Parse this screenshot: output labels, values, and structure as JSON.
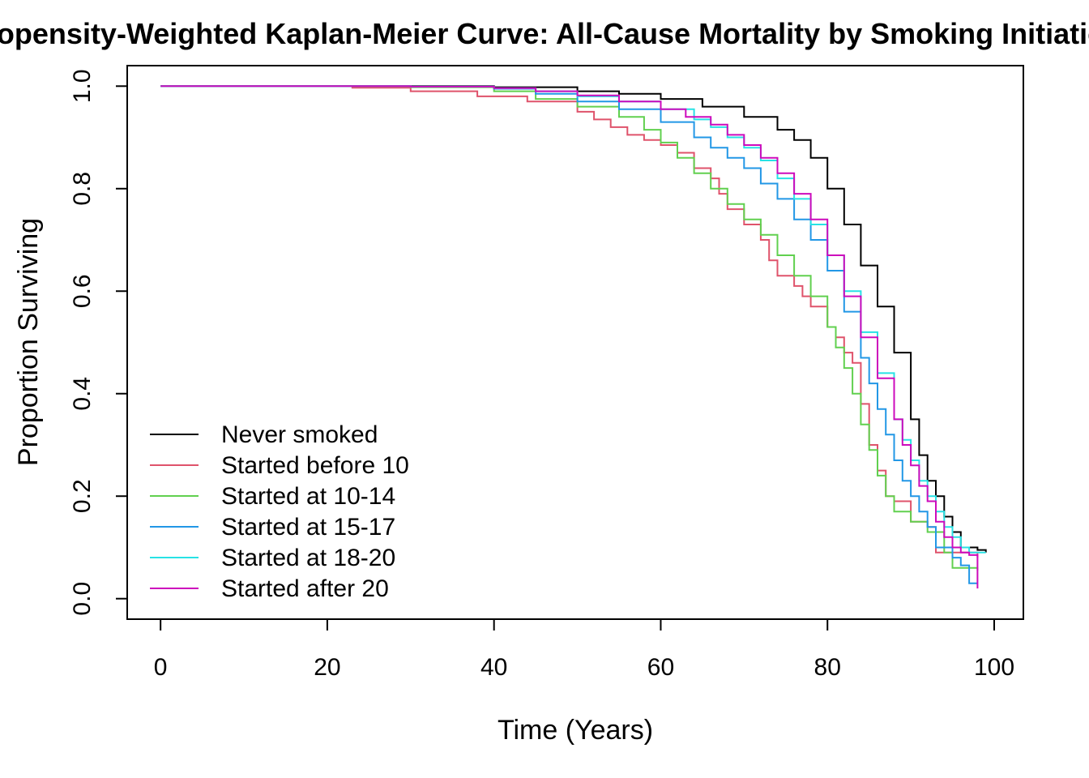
{
  "chart_data": {
    "type": "line",
    "title": "Propensity-Weighted Kaplan-Meier Curve: All-Cause Mortality by Smoking Initiation",
    "xlabel": "Time (Years)",
    "ylabel": "Proportion Surviving",
    "xlim": [
      -4,
      103.5
    ],
    "ylim": [
      -0.04,
      1.04
    ],
    "xticks": [
      0,
      20,
      40,
      60,
      80,
      100
    ],
    "xtick_labels": [
      "0",
      "20",
      "40",
      "60",
      "80",
      "100"
    ],
    "yticks": [
      0.0,
      0.2,
      0.4,
      0.6,
      0.8,
      1.0
    ],
    "ytick_labels": [
      "0.0",
      "0.2",
      "0.4",
      "0.6",
      "0.8",
      "1.0"
    ],
    "grid": false,
    "legend_position": "bottom-left",
    "step": true,
    "series": [
      {
        "name": "Never smoked",
        "color": "#000000",
        "points": [
          [
            0,
            1.0
          ],
          [
            40,
            0.998
          ],
          [
            50,
            0.99
          ],
          [
            55,
            0.985
          ],
          [
            60,
            0.975
          ],
          [
            65,
            0.96
          ],
          [
            70,
            0.94
          ],
          [
            74,
            0.915
          ],
          [
            76,
            0.895
          ],
          [
            78,
            0.86
          ],
          [
            80,
            0.8
          ],
          [
            82,
            0.73
          ],
          [
            84,
            0.65
          ],
          [
            86,
            0.57
          ],
          [
            88,
            0.48
          ],
          [
            90,
            0.35
          ],
          [
            91,
            0.28
          ],
          [
            92,
            0.23
          ],
          [
            93,
            0.2
          ],
          [
            94,
            0.16
          ],
          [
            95,
            0.13
          ],
          [
            96,
            0.1
          ],
          [
            98,
            0.095
          ],
          [
            99,
            0.09
          ]
        ]
      },
      {
        "name": "Started before 10",
        "color": "#DF536B",
        "points": [
          [
            0,
            1.0
          ],
          [
            23,
            0.997
          ],
          [
            30,
            0.99
          ],
          [
            38,
            0.98
          ],
          [
            44,
            0.97
          ],
          [
            50,
            0.95
          ],
          [
            52,
            0.935
          ],
          [
            54,
            0.92
          ],
          [
            56,
            0.905
          ],
          [
            58,
            0.895
          ],
          [
            60,
            0.885
          ],
          [
            62,
            0.87
          ],
          [
            64,
            0.84
          ],
          [
            66,
            0.82
          ],
          [
            67,
            0.79
          ],
          [
            68,
            0.76
          ],
          [
            70,
            0.73
          ],
          [
            72,
            0.7
          ],
          [
            73,
            0.66
          ],
          [
            74,
            0.63
          ],
          [
            76,
            0.61
          ],
          [
            77,
            0.59
          ],
          [
            78,
            0.57
          ],
          [
            80,
            0.53
          ],
          [
            81,
            0.51
          ],
          [
            82,
            0.48
          ],
          [
            83,
            0.46
          ],
          [
            84,
            0.38
          ],
          [
            85,
            0.3
          ],
          [
            86,
            0.25
          ],
          [
            87,
            0.2
          ],
          [
            88,
            0.19
          ],
          [
            90,
            0.15
          ],
          [
            92,
            0.14
          ],
          [
            93,
            0.09
          ],
          [
            96,
            0.09
          ],
          [
            98,
            0.08
          ]
        ]
      },
      {
        "name": "Started at 10-14",
        "color": "#61D04F",
        "points": [
          [
            0,
            1.0
          ],
          [
            30,
            0.998
          ],
          [
            40,
            0.99
          ],
          [
            45,
            0.975
          ],
          [
            50,
            0.96
          ],
          [
            55,
            0.94
          ],
          [
            58,
            0.915
          ],
          [
            60,
            0.89
          ],
          [
            62,
            0.86
          ],
          [
            64,
            0.83
          ],
          [
            66,
            0.8
          ],
          [
            68,
            0.77
          ],
          [
            70,
            0.74
          ],
          [
            72,
            0.71
          ],
          [
            74,
            0.67
          ],
          [
            76,
            0.63
          ],
          [
            78,
            0.59
          ],
          [
            80,
            0.53
          ],
          [
            81,
            0.49
          ],
          [
            82,
            0.45
          ],
          [
            83,
            0.4
          ],
          [
            84,
            0.34
          ],
          [
            85,
            0.29
          ],
          [
            86,
            0.24
          ],
          [
            87,
            0.2
          ],
          [
            88,
            0.17
          ],
          [
            90,
            0.15
          ],
          [
            92,
            0.13
          ],
          [
            94,
            0.09
          ],
          [
            95,
            0.06
          ],
          [
            98,
            0.055
          ]
        ]
      },
      {
        "name": "Started at 15-17",
        "color": "#2297E6",
        "points": [
          [
            0,
            1.0
          ],
          [
            30,
            0.999
          ],
          [
            40,
            0.995
          ],
          [
            45,
            0.985
          ],
          [
            50,
            0.97
          ],
          [
            55,
            0.955
          ],
          [
            60,
            0.93
          ],
          [
            64,
            0.9
          ],
          [
            66,
            0.88
          ],
          [
            68,
            0.86
          ],
          [
            70,
            0.84
          ],
          [
            72,
            0.81
          ],
          [
            74,
            0.78
          ],
          [
            76,
            0.74
          ],
          [
            78,
            0.7
          ],
          [
            80,
            0.64
          ],
          [
            82,
            0.56
          ],
          [
            84,
            0.47
          ],
          [
            85,
            0.42
          ],
          [
            86,
            0.37
          ],
          [
            87,
            0.32
          ],
          [
            88,
            0.27
          ],
          [
            89,
            0.23
          ],
          [
            90,
            0.2
          ],
          [
            91,
            0.17
          ],
          [
            92,
            0.14
          ],
          [
            93,
            0.1
          ],
          [
            95,
            0.08
          ],
          [
            96,
            0.065
          ],
          [
            97,
            0.03
          ],
          [
            98,
            0.03
          ]
        ]
      },
      {
        "name": "Started at 18-20",
        "color": "#28E2E5",
        "points": [
          [
            0,
            1.0
          ],
          [
            30,
            0.999
          ],
          [
            40,
            0.996
          ],
          [
            45,
            0.99
          ],
          [
            50,
            0.98
          ],
          [
            55,
            0.97
          ],
          [
            60,
            0.955
          ],
          [
            64,
            0.935
          ],
          [
            66,
            0.92
          ],
          [
            68,
            0.9
          ],
          [
            70,
            0.88
          ],
          [
            72,
            0.855
          ],
          [
            74,
            0.82
          ],
          [
            76,
            0.78
          ],
          [
            78,
            0.73
          ],
          [
            80,
            0.67
          ],
          [
            82,
            0.6
          ],
          [
            84,
            0.52
          ],
          [
            86,
            0.44
          ],
          [
            88,
            0.35
          ],
          [
            89,
            0.31
          ],
          [
            90,
            0.27
          ],
          [
            91,
            0.23
          ],
          [
            92,
            0.2
          ],
          [
            93,
            0.17
          ],
          [
            94,
            0.14
          ],
          [
            95,
            0.12
          ],
          [
            96,
            0.1
          ],
          [
            97,
            0.09
          ],
          [
            99,
            0.09
          ]
        ]
      },
      {
        "name": "Started after 20",
        "color": "#CD0BBC",
        "points": [
          [
            0,
            1.0
          ],
          [
            30,
            0.999
          ],
          [
            40,
            0.996
          ],
          [
            45,
            0.99
          ],
          [
            50,
            0.982
          ],
          [
            55,
            0.97
          ],
          [
            60,
            0.955
          ],
          [
            63,
            0.94
          ],
          [
            66,
            0.925
          ],
          [
            68,
            0.905
          ],
          [
            70,
            0.885
          ],
          [
            72,
            0.86
          ],
          [
            74,
            0.83
          ],
          [
            76,
            0.79
          ],
          [
            78,
            0.74
          ],
          [
            80,
            0.67
          ],
          [
            82,
            0.59
          ],
          [
            84,
            0.51
          ],
          [
            86,
            0.43
          ],
          [
            88,
            0.35
          ],
          [
            89,
            0.3
          ],
          [
            90,
            0.26
          ],
          [
            91,
            0.22
          ],
          [
            92,
            0.19
          ],
          [
            93,
            0.15
          ],
          [
            94,
            0.12
          ],
          [
            95,
            0.1
          ],
          [
            96,
            0.09
          ],
          [
            97,
            0.085
          ],
          [
            98,
            0.02
          ]
        ]
      }
    ]
  }
}
